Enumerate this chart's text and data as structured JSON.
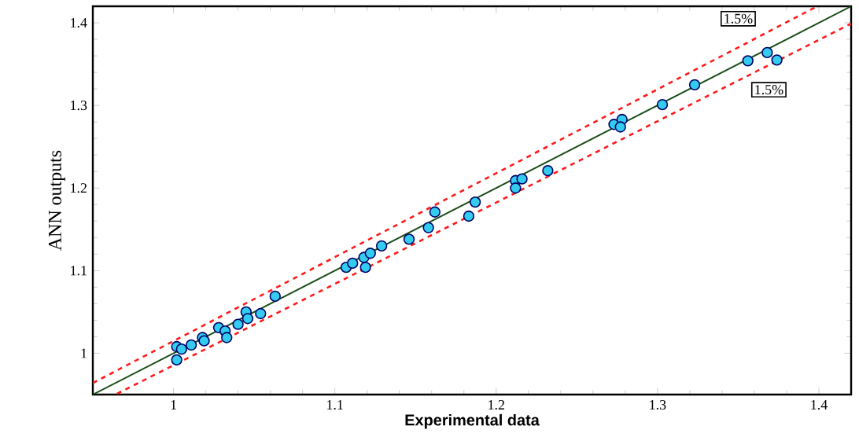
{
  "chart_data": {
    "type": "scatter",
    "xlabel": "Experimental data",
    "ylabel": "ANN outputs",
    "xlim": [
      0.95,
      1.42
    ],
    "ylim": [
      0.95,
      1.42
    ],
    "xticks": [
      1,
      1.1,
      1.2,
      1.3,
      1.4
    ],
    "yticks": [
      1,
      1.1,
      1.2,
      1.3,
      1.4
    ],
    "series": [
      {
        "type": "line",
        "color": "#1a4d1a",
        "line_style": "solid",
        "marker": "none",
        "x": [
          0.95,
          1.42
        ],
        "values": [
          0.95,
          1.42
        ]
      },
      {
        "type": "line",
        "color": "#ff1a1a",
        "line_style": "dashed",
        "marker": "none",
        "x": [
          0.95,
          1.399
        ],
        "values": [
          0.964,
          1.42
        ]
      },
      {
        "type": "line",
        "color": "#ff1a1a",
        "line_style": "dashed",
        "marker": "none",
        "x": [
          0.965,
          1.42
        ],
        "values": [
          0.951,
          1.399
        ]
      },
      {
        "color": "#33ccee",
        "marker": "circle",
        "x": [
          1.002,
          1.002,
          1.005,
          1.011,
          1.018,
          1.019,
          1.028,
          1.032,
          1.033,
          1.04,
          1.045,
          1.046,
          1.054,
          1.063,
          1.107,
          1.111,
          1.119,
          1.118,
          1.122,
          1.129,
          1.146,
          1.158,
          1.162,
          1.183,
          1.187,
          1.212,
          1.212,
          1.216,
          1.232,
          1.273,
          1.278,
          1.277,
          1.303,
          1.323,
          1.356,
          1.368,
          1.374
        ],
        "values": [
          0.992,
          1.008,
          1.005,
          1.01,
          1.019,
          1.015,
          1.031,
          1.027,
          1.019,
          1.035,
          1.05,
          1.042,
          1.048,
          1.069,
          1.104,
          1.109,
          1.104,
          1.116,
          1.121,
          1.13,
          1.138,
          1.152,
          1.171,
          1.166,
          1.183,
          1.209,
          1.2,
          1.211,
          1.221,
          1.277,
          1.283,
          1.274,
          1.301,
          1.325,
          1.354,
          1.364,
          1.355
        ]
      }
    ],
    "annotations": [
      {
        "text": "1.5%",
        "x": 1.35,
        "y": 1.405
      },
      {
        "text": "1.5%",
        "x": 1.369,
        "y": 1.319
      }
    ]
  }
}
